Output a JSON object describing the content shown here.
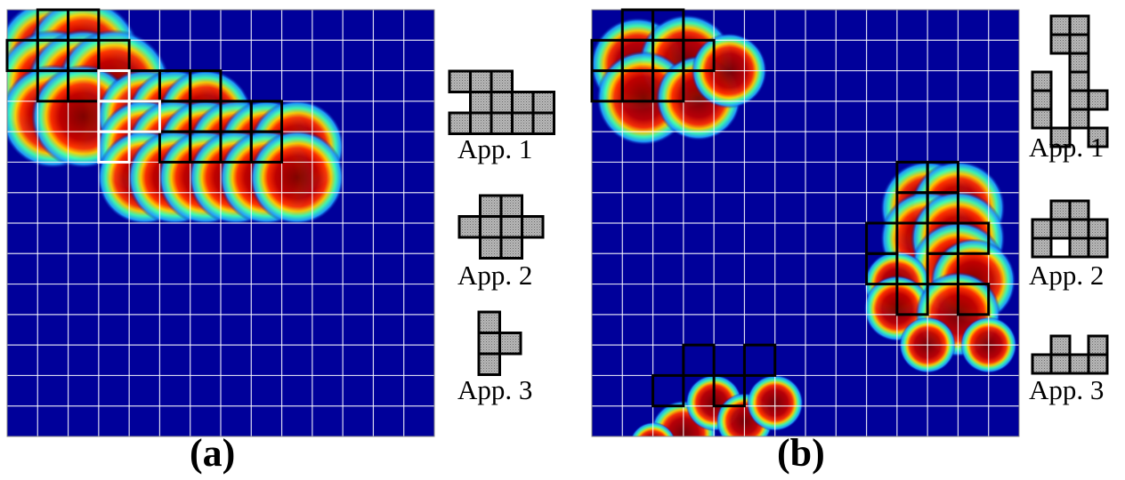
{
  "panels": [
    {
      "label": "(a)",
      "grid": {
        "cols": 14,
        "rows": 14
      },
      "heat_blobs": [
        [
          1,
          1,
          1.2
        ],
        [
          2,
          1,
          1.2
        ],
        [
          1,
          2,
          1.2
        ],
        [
          2,
          2,
          1.2
        ],
        [
          3,
          2,
          1.2
        ],
        [
          1,
          3,
          1.1
        ],
        [
          2,
          3,
          1.1
        ],
        [
          4,
          3,
          1
        ],
        [
          5,
          3,
          1
        ],
        [
          6,
          3,
          1
        ],
        [
          4,
          4,
          1
        ],
        [
          5,
          4,
          1
        ],
        [
          6,
          4,
          1
        ],
        [
          7,
          4,
          1
        ],
        [
          8,
          4,
          1
        ],
        [
          9,
          4,
          1
        ],
        [
          4,
          5,
          1
        ],
        [
          5,
          5,
          1
        ],
        [
          6,
          5,
          1
        ],
        [
          7,
          5,
          1
        ],
        [
          8,
          5,
          1
        ],
        [
          9,
          5,
          1
        ]
      ],
      "placed_cells": [
        [
          1,
          0
        ],
        [
          2,
          0
        ],
        [
          0,
          1
        ],
        [
          1,
          1
        ],
        [
          2,
          1
        ],
        [
          3,
          1
        ],
        [
          1,
          2
        ],
        [
          2,
          2
        ],
        [
          3,
          2
        ],
        [
          4,
          2
        ],
        [
          5,
          2
        ],
        [
          6,
          2
        ],
        [
          4,
          3
        ],
        [
          5,
          3
        ],
        [
          6,
          3
        ],
        [
          7,
          3
        ],
        [
          8,
          3
        ],
        [
          5,
          4
        ],
        [
          6,
          4
        ],
        [
          7,
          4
        ],
        [
          8,
          4
        ]
      ],
      "white_cells": [
        [
          3,
          2
        ],
        [
          3,
          3
        ],
        [
          4,
          3
        ],
        [
          3,
          4
        ]
      ],
      "appliances": [
        {
          "caption": "App. 1",
          "cells": [
            [
              0,
              0
            ],
            [
              1,
              0
            ],
            [
              2,
              0
            ],
            [
              1,
              1
            ],
            [
              2,
              1
            ],
            [
              3,
              1
            ],
            [
              4,
              1
            ],
            [
              0,
              2
            ],
            [
              1,
              2
            ],
            [
              2,
              2
            ],
            [
              3,
              2
            ],
            [
              4,
              2
            ]
          ],
          "hollow": []
        },
        {
          "caption": "App. 2",
          "cells": [
            [
              1,
              0
            ],
            [
              2,
              0
            ],
            [
              0,
              1
            ],
            [
              1,
              1
            ],
            [
              2,
              1
            ],
            [
              3,
              1
            ],
            [
              1,
              2
            ],
            [
              2,
              2
            ]
          ],
          "hollow": []
        },
        {
          "caption": "App. 3",
          "cells": [
            [
              0,
              0
            ],
            [
              0,
              1
            ],
            [
              1,
              1
            ],
            [
              0,
              2
            ]
          ],
          "hollow": []
        }
      ]
    },
    {
      "label": "(b)",
      "grid": {
        "cols": 14,
        "rows": 14
      },
      "heat_blobs": [
        [
          1,
          1.3,
          1
        ],
        [
          2.6,
          1.2,
          1
        ],
        [
          1.2,
          2.4,
          1
        ],
        [
          3,
          2.4,
          0.9
        ],
        [
          4,
          1.5,
          0.8
        ],
        [
          10.5,
          6,
          1
        ],
        [
          11.5,
          6,
          1
        ],
        [
          10.5,
          7,
          1
        ],
        [
          11.5,
          7,
          1
        ],
        [
          11.5,
          8,
          1
        ],
        [
          12,
          8.4,
          0.9
        ],
        [
          9.5,
          8.5,
          0.7
        ],
        [
          9.5,
          9.3,
          0.7
        ],
        [
          11.5,
          9.5,
          0.9
        ],
        [
          10.5,
          10.5,
          0.6
        ],
        [
          12.5,
          10.5,
          0.6
        ],
        [
          2.5,
          13.4,
          0.7
        ],
        [
          3.5,
          12.4,
          0.6
        ],
        [
          4.5,
          13,
          0.6
        ],
        [
          5.5,
          12.4,
          0.6
        ],
        [
          1.5,
          13.8,
          0.5
        ]
      ],
      "placed_cells": [
        [
          1,
          0
        ],
        [
          2,
          0
        ],
        [
          0,
          1
        ],
        [
          1,
          1
        ],
        [
          2,
          1
        ],
        [
          3,
          1
        ],
        [
          0,
          2
        ],
        [
          1,
          2
        ],
        [
          2,
          2
        ],
        [
          10,
          5
        ],
        [
          11,
          5
        ],
        [
          10,
          6
        ],
        [
          11,
          6
        ],
        [
          11,
          7
        ],
        [
          12,
          7
        ],
        [
          9,
          7
        ],
        [
          9,
          8
        ],
        [
          11,
          8
        ],
        [
          10,
          9
        ],
        [
          12,
          9
        ],
        [
          3,
          11
        ],
        [
          5,
          11
        ],
        [
          2,
          12
        ],
        [
          4,
          12
        ]
      ],
      "white_cells": [],
      "appliances": [
        {
          "caption": "App. 1",
          "cells": [
            [
              1,
              0
            ],
            [
              2,
              0
            ],
            [
              1,
              1
            ],
            [
              2,
              1
            ],
            [
              2,
              2
            ],
            [
              2,
              3
            ],
            [
              0,
              3
            ],
            [
              2,
              3
            ],
            [
              0,
              4
            ],
            [
              2,
              4
            ],
            [
              3,
              4
            ],
            [
              0,
              5
            ],
            [
              2,
              5
            ],
            [
              1,
              6
            ],
            [
              3,
              6
            ]
          ],
          "hollow": []
        },
        {
          "caption": "App. 2",
          "cells": [
            [
              1,
              0
            ],
            [
              2,
              0
            ],
            [
              0,
              1
            ],
            [
              1,
              1
            ],
            [
              2,
              1
            ],
            [
              3,
              1
            ],
            [
              0,
              2
            ],
            [
              2,
              2
            ],
            [
              3,
              2
            ]
          ],
          "hollow": [
            [
              1,
              2
            ]
          ]
        },
        {
          "caption": "App. 3",
          "cells": [
            [
              1,
              0
            ],
            [
              3,
              0
            ],
            [
              0,
              1
            ],
            [
              1,
              1
            ],
            [
              3,
              1
            ],
            [
              2,
              1
            ]
          ],
          "hollow": []
        }
      ]
    }
  ]
}
